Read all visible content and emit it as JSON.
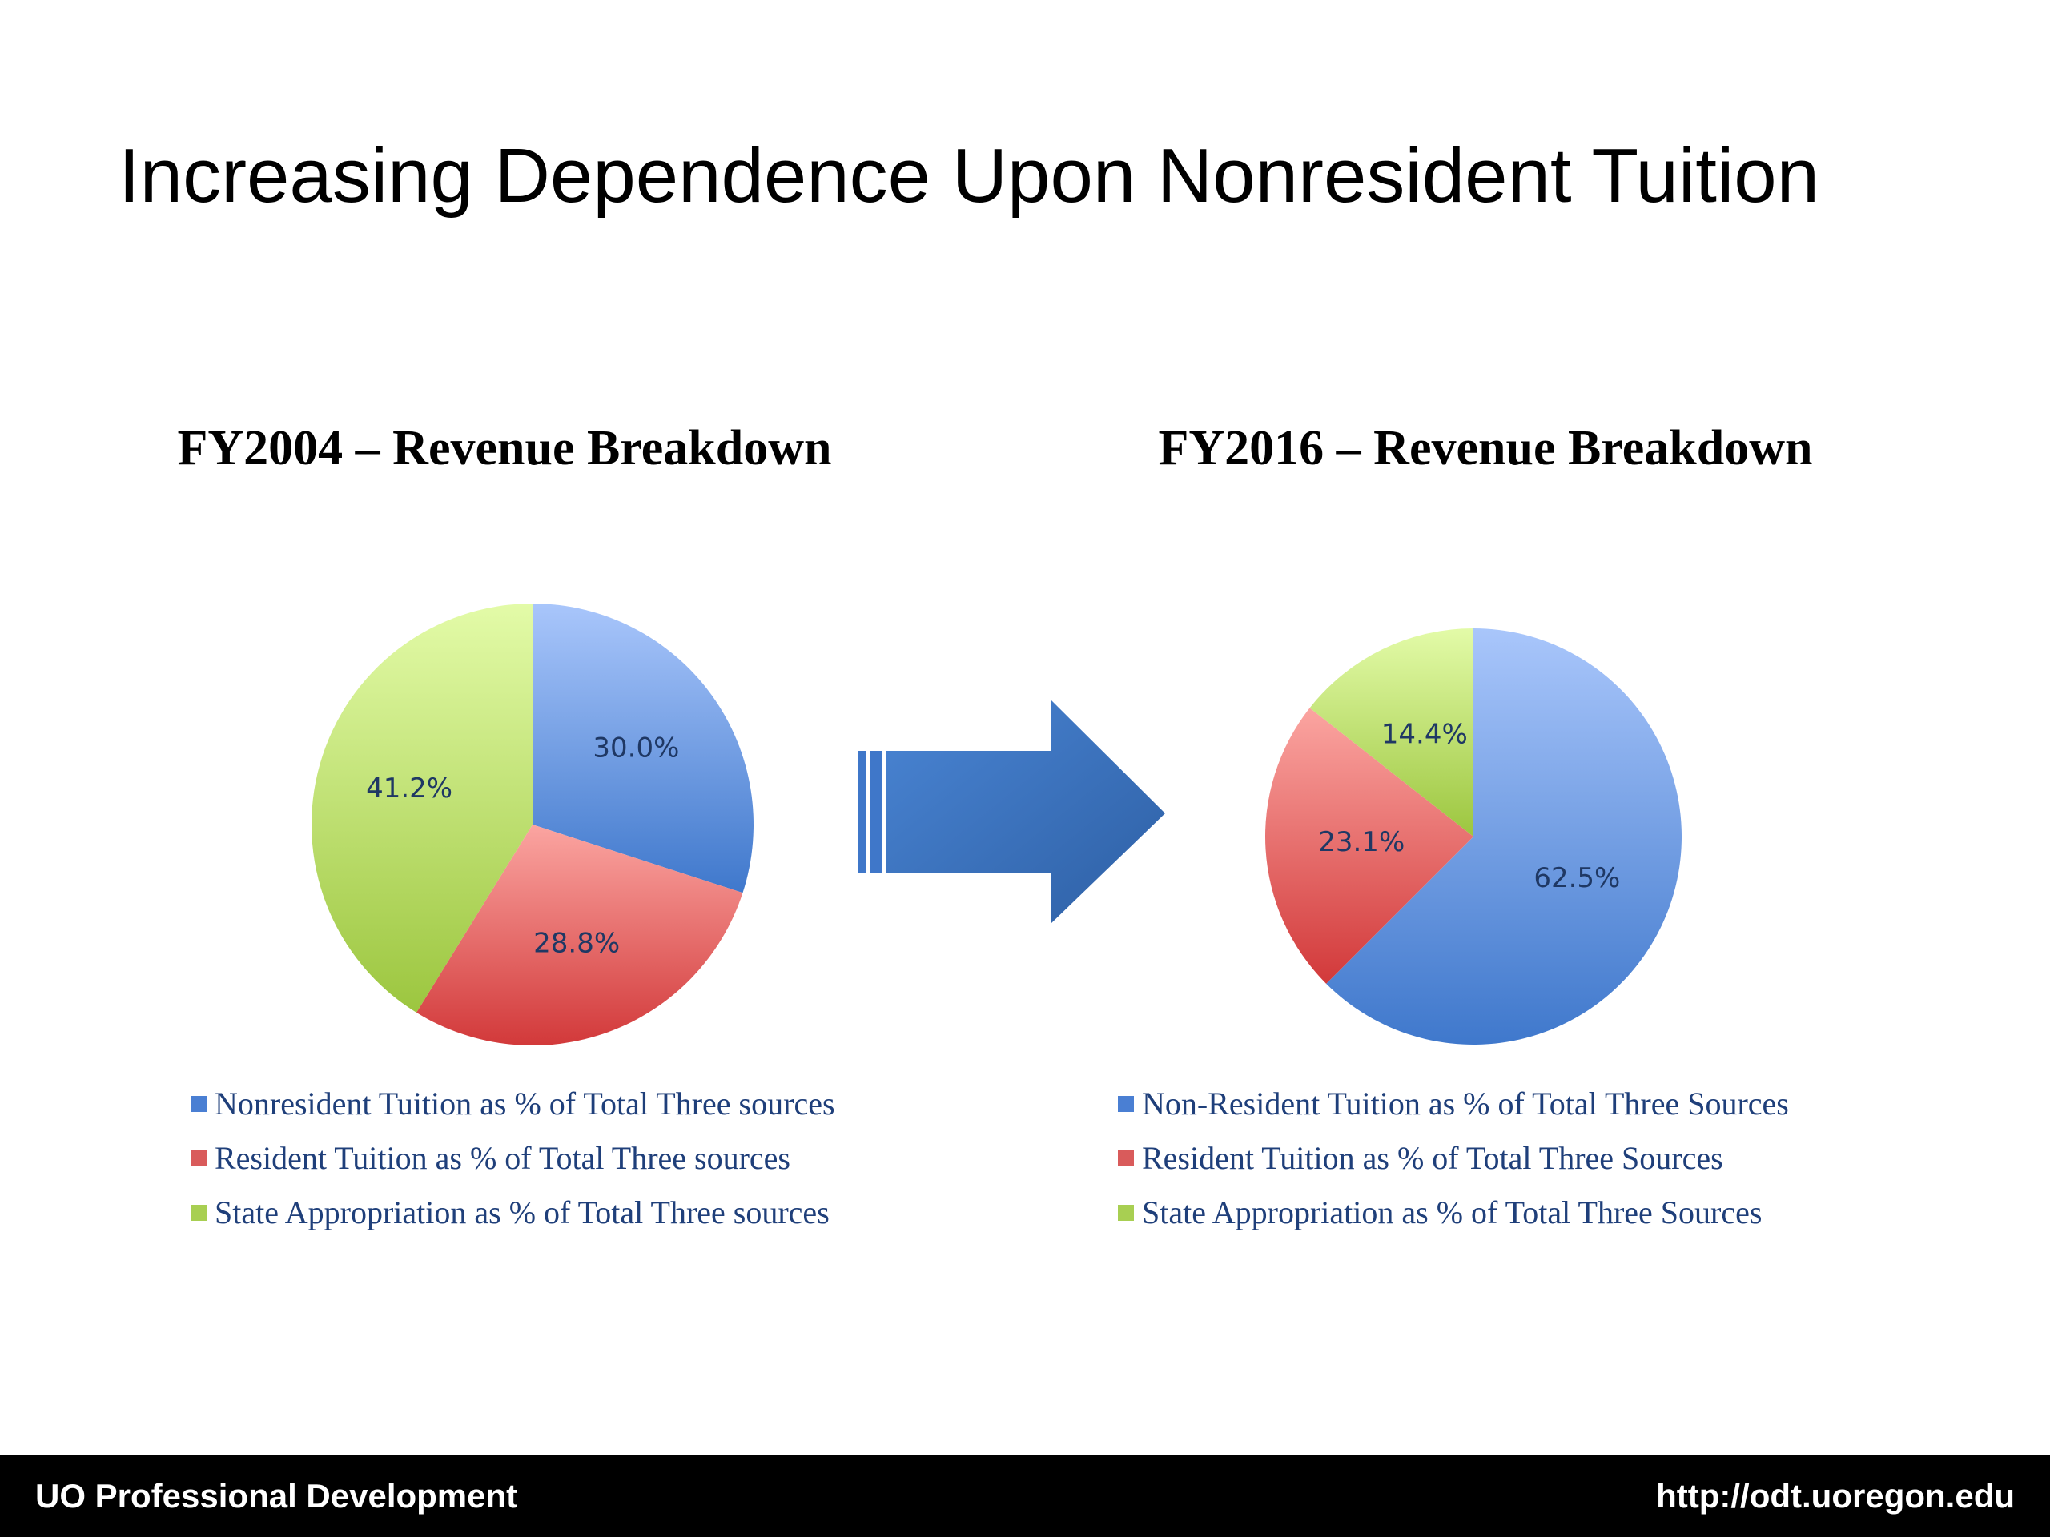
{
  "slide": {
    "title": "Increasing Dependence Upon Nonresident Tuition"
  },
  "footer": {
    "left": "UO Professional Development",
    "right": "http://odt.uoregon.edu"
  },
  "chart_data": [
    {
      "type": "pie",
      "title": "FY2004 – Revenue Breakdown",
      "categories": [
        "Nonresident Tuition as % of Total Three sources",
        "Resident Tuition as % of Total Three sources",
        "State Appropriation as % of Total Three sources"
      ],
      "values": [
        30.0,
        28.8,
        41.2
      ],
      "labels": [
        "30.0%",
        "28.8%",
        "41.2%"
      ],
      "colors": [
        "#4a7fd3",
        "#d95b5b",
        "#a8cf52"
      ],
      "legend_position": "bottom"
    },
    {
      "type": "pie",
      "title": "FY2016 – Revenue Breakdown",
      "categories": [
        "Non-Resident Tuition as % of Total Three Sources",
        "Resident Tuition as % of Total Three Sources",
        "State Appropriation as % of Total Three Sources"
      ],
      "values": [
        62.5,
        23.1,
        14.4
      ],
      "labels": [
        "62.5%",
        "23.1%",
        "14.4%"
      ],
      "colors": [
        "#4a7fd3",
        "#d95b5b",
        "#a8cf52"
      ],
      "legend_position": "bottom"
    }
  ],
  "icons": {
    "arrow": "right-arrow-icon"
  }
}
